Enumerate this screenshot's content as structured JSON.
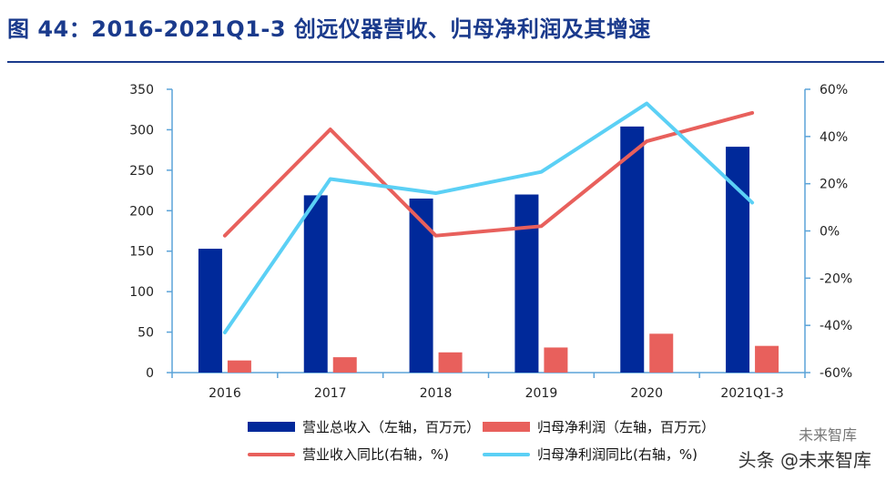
{
  "header": {
    "title": "图 44：2016-2021Q1-3 创远仪器营收、归母净利润及其增速"
  },
  "colors": {
    "revenue_bar": "#00299a",
    "profit_bar": "#e8605c",
    "revenue_growth_line": "#e8605c",
    "profit_growth_line": "#5bd0f5",
    "axis": "#5ba3d8",
    "title": "#1a3a8c"
  },
  "chart_data": {
    "type": "bar",
    "title": "2016-2021Q1-3 创远仪器营收、归母净利润及其增速",
    "categories": [
      "2016",
      "2017",
      "2018",
      "2019",
      "2020",
      "2021Q1-3"
    ],
    "y_left": {
      "min": 0,
      "max": 350,
      "ticks": [
        "0",
        "50",
        "100",
        "150",
        "200",
        "250",
        "300",
        "350"
      ]
    },
    "y_right": {
      "min": -60,
      "max": 60,
      "ticks": [
        "-60%",
        "-40%",
        "-20%",
        "0%",
        "20%",
        "40%",
        "60%"
      ]
    },
    "series": [
      {
        "name": "营业总收入（左轴，百万元）",
        "type": "bar",
        "axis": "left",
        "values": [
          153,
          219,
          215,
          220,
          304,
          279
        ]
      },
      {
        "name": "归母净利润（左轴，百万元）",
        "type": "bar",
        "axis": "left",
        "values": [
          15,
          19,
          25,
          31,
          48,
          33
        ]
      },
      {
        "name": "营业收入同比(右轴，%)",
        "type": "line",
        "axis": "right",
        "values": [
          -2,
          43,
          -2,
          2,
          38,
          50
        ]
      },
      {
        "name": "归母净利润同比(右轴，%)",
        "type": "line",
        "axis": "right",
        "values": [
          -43,
          22,
          16,
          25,
          54,
          12
        ]
      }
    ],
    "legend_position": "bottom"
  },
  "watermark": {
    "main": "头条 @未来智库",
    "secondary": "未来智库"
  }
}
